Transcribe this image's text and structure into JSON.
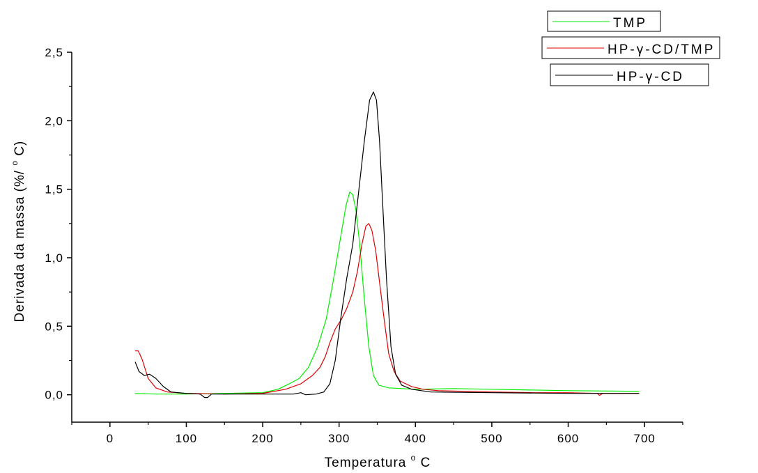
{
  "chart_data": {
    "type": "line",
    "xlabel": {
      "text": "Temperatura",
      "sup": "o",
      "unit": "C"
    },
    "ylabel": {
      "text": "Derivada da massa (%/",
      "sup": "o",
      "unit": "C)"
    },
    "xlim": [
      -50,
      750
    ],
    "ylim": [
      -0.2,
      2.5
    ],
    "xticks": [
      0,
      100,
      200,
      300,
      400,
      500,
      600,
      700
    ],
    "xtick_labels": [
      "0",
      "100",
      "200",
      "300",
      "400",
      "500",
      "600",
      "700"
    ],
    "yticks": [
      0,
      0.5,
      1.0,
      1.5,
      2.0,
      2.5
    ],
    "ytick_labels": [
      "0,0",
      "0,5",
      "1,0",
      "1,5",
      "2,0",
      "2,5"
    ],
    "grid": false,
    "legend_placement": "top-right",
    "series": [
      {
        "name": "TMP",
        "color": "#00ee00",
        "points": [
          [
            33,
            0.01
          ],
          [
            60,
            0.005
          ],
          [
            100,
            0.005
          ],
          [
            150,
            0.01
          ],
          [
            200,
            0.015
          ],
          [
            220,
            0.04
          ],
          [
            235,
            0.08
          ],
          [
            248,
            0.12
          ],
          [
            260,
            0.2
          ],
          [
            272,
            0.35
          ],
          [
            283,
            0.55
          ],
          [
            293,
            0.85
          ],
          [
            302,
            1.15
          ],
          [
            309,
            1.38
          ],
          [
            314,
            1.48
          ],
          [
            318,
            1.46
          ],
          [
            322,
            1.35
          ],
          [
            327,
            1.1
          ],
          [
            333,
            0.7
          ],
          [
            339,
            0.35
          ],
          [
            345,
            0.14
          ],
          [
            352,
            0.07
          ],
          [
            365,
            0.05
          ],
          [
            400,
            0.04
          ],
          [
            450,
            0.045
          ],
          [
            500,
            0.04
          ],
          [
            600,
            0.03
          ],
          [
            693,
            0.025
          ]
        ]
      },
      {
        "name": "HP-γ-CD/TMP",
        "color": "#dd0000",
        "points": [
          [
            33,
            0.32
          ],
          [
            37,
            0.32
          ],
          [
            42,
            0.26
          ],
          [
            50,
            0.12
          ],
          [
            60,
            0.05
          ],
          [
            75,
            0.02
          ],
          [
            100,
            0.01
          ],
          [
            150,
            0.005
          ],
          [
            200,
            0.01
          ],
          [
            230,
            0.04
          ],
          [
            250,
            0.08
          ],
          [
            265,
            0.14
          ],
          [
            275,
            0.2
          ],
          [
            282,
            0.28
          ],
          [
            288,
            0.38
          ],
          [
            295,
            0.48
          ],
          [
            303,
            0.55
          ],
          [
            310,
            0.63
          ],
          [
            318,
            0.75
          ],
          [
            324,
            0.9
          ],
          [
            330,
            1.1
          ],
          [
            335,
            1.23
          ],
          [
            339,
            1.25
          ],
          [
            343,
            1.2
          ],
          [
            348,
            1.05
          ],
          [
            353,
            0.82
          ],
          [
            359,
            0.55
          ],
          [
            365,
            0.3
          ],
          [
            372,
            0.17
          ],
          [
            380,
            0.1
          ],
          [
            395,
            0.06
          ],
          [
            410,
            0.04
          ],
          [
            430,
            0.03
          ],
          [
            500,
            0.02
          ],
          [
            555,
            0.015
          ],
          [
            600,
            0.015
          ],
          [
            638,
            0.01
          ],
          [
            641,
            -0.005
          ],
          [
            645,
            0.01
          ],
          [
            693,
            0.01
          ]
        ]
      },
      {
        "name": "HP-γ-CD",
        "color": "#000000",
        "points": [
          [
            33,
            0.24
          ],
          [
            38,
            0.17
          ],
          [
            45,
            0.14
          ],
          [
            52,
            0.15
          ],
          [
            60,
            0.12
          ],
          [
            70,
            0.06
          ],
          [
            80,
            0.02
          ],
          [
            100,
            0.01
          ],
          [
            118,
            0.005
          ],
          [
            124,
            -0.02
          ],
          [
            128,
            -0.02
          ],
          [
            133,
            0.005
          ],
          [
            150,
            0.005
          ],
          [
            200,
            0.005
          ],
          [
            240,
            0.005
          ],
          [
            250,
            0.015
          ],
          [
            256,
            0.0
          ],
          [
            270,
            0.005
          ],
          [
            280,
            0.02
          ],
          [
            288,
            0.08
          ],
          [
            295,
            0.25
          ],
          [
            302,
            0.55
          ],
          [
            310,
            0.85
          ],
          [
            318,
            1.1
          ],
          [
            325,
            1.45
          ],
          [
            333,
            1.85
          ],
          [
            340,
            2.15
          ],
          [
            345,
            2.21
          ],
          [
            349,
            2.15
          ],
          [
            353,
            1.85
          ],
          [
            357,
            1.4
          ],
          [
            362,
            0.85
          ],
          [
            368,
            0.35
          ],
          [
            374,
            0.15
          ],
          [
            382,
            0.07
          ],
          [
            395,
            0.04
          ],
          [
            420,
            0.02
          ],
          [
            500,
            0.015
          ],
          [
            600,
            0.01
          ],
          [
            693,
            0.01
          ]
        ]
      }
    ]
  }
}
